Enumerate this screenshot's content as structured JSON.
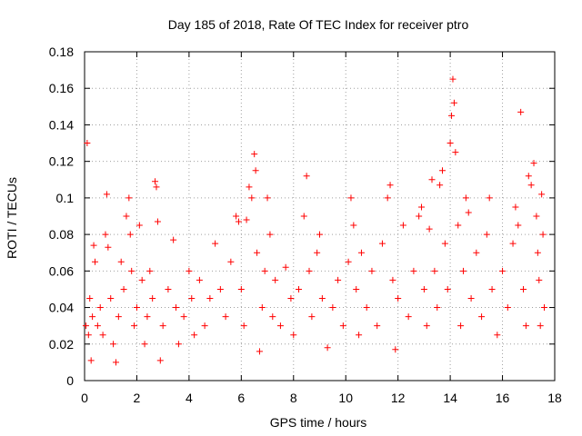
{
  "chart_data": {
    "type": "scatter",
    "title": "Day 185 of 2018, Rate Of TEC Index for receiver ptro",
    "xlabel": "GPS time / hours",
    "ylabel": "ROTI / TECUs",
    "xlim": [
      0,
      18
    ],
    "ylim": [
      0,
      0.18
    ],
    "x_ticks": [
      0,
      2,
      4,
      6,
      8,
      10,
      12,
      14,
      16,
      18
    ],
    "x_tick_labels": [
      "0",
      "2",
      "4",
      "6",
      "8",
      "10",
      "12",
      "14",
      "16",
      "18"
    ],
    "y_ticks": [
      0,
      0.02,
      0.04,
      0.06,
      0.08,
      0.1,
      0.12,
      0.14,
      0.16,
      0.18
    ],
    "y_tick_labels": [
      "0",
      "0.02",
      "0.04",
      "0.06",
      "0.08",
      "0.1",
      "0.12",
      "0.14",
      "0.16",
      "0.18"
    ],
    "grid": true,
    "marker": "+",
    "color": "#ff0000",
    "series": [
      {
        "name": "ROTI",
        "points": [
          [
            0.05,
            0.03
          ],
          [
            0.1,
            0.13
          ],
          [
            0.15,
            0.025
          ],
          [
            0.2,
            0.045
          ],
          [
            0.25,
            0.011
          ],
          [
            0.3,
            0.035
          ],
          [
            0.35,
            0.074
          ],
          [
            0.4,
            0.065
          ],
          [
            0.5,
            0.03
          ],
          [
            0.6,
            0.04
          ],
          [
            0.7,
            0.025
          ],
          [
            0.8,
            0.08
          ],
          [
            0.85,
            0.102
          ],
          [
            0.9,
            0.073
          ],
          [
            1.0,
            0.045
          ],
          [
            1.1,
            0.02
          ],
          [
            1.2,
            0.01
          ],
          [
            1.3,
            0.035
          ],
          [
            1.4,
            0.065
          ],
          [
            1.5,
            0.05
          ],
          [
            1.6,
            0.09
          ],
          [
            1.7,
            0.1
          ],
          [
            1.75,
            0.08
          ],
          [
            1.8,
            0.06
          ],
          [
            1.9,
            0.03
          ],
          [
            2.0,
            0.04
          ],
          [
            2.1,
            0.085
          ],
          [
            2.2,
            0.055
          ],
          [
            2.3,
            0.02
          ],
          [
            2.4,
            0.035
          ],
          [
            2.5,
            0.06
          ],
          [
            2.6,
            0.045
          ],
          [
            2.7,
            0.109
          ],
          [
            2.75,
            0.106
          ],
          [
            2.8,
            0.087
          ],
          [
            2.9,
            0.011
          ],
          [
            3.0,
            0.03
          ],
          [
            3.2,
            0.05
          ],
          [
            3.4,
            0.077
          ],
          [
            3.5,
            0.04
          ],
          [
            3.6,
            0.02
          ],
          [
            3.8,
            0.035
          ],
          [
            4.0,
            0.06
          ],
          [
            4.1,
            0.045
          ],
          [
            4.2,
            0.025
          ],
          [
            4.4,
            0.055
          ],
          [
            4.6,
            0.03
          ],
          [
            4.8,
            0.045
          ],
          [
            5.0,
            0.075
          ],
          [
            5.2,
            0.05
          ],
          [
            5.4,
            0.035
          ],
          [
            5.6,
            0.065
          ],
          [
            5.8,
            0.09
          ],
          [
            5.9,
            0.087
          ],
          [
            6.0,
            0.05
          ],
          [
            6.1,
            0.03
          ],
          [
            6.2,
            0.088
          ],
          [
            6.3,
            0.106
          ],
          [
            6.4,
            0.1
          ],
          [
            6.5,
            0.124
          ],
          [
            6.55,
            0.115
          ],
          [
            6.6,
            0.07
          ],
          [
            6.7,
            0.016
          ],
          [
            6.8,
            0.04
          ],
          [
            6.9,
            0.06
          ],
          [
            7.0,
            0.1
          ],
          [
            7.1,
            0.08
          ],
          [
            7.2,
            0.035
          ],
          [
            7.3,
            0.055
          ],
          [
            7.5,
            0.03
          ],
          [
            7.7,
            0.062
          ],
          [
            7.9,
            0.045
          ],
          [
            8.0,
            0.025
          ],
          [
            8.2,
            0.05
          ],
          [
            8.4,
            0.09
          ],
          [
            8.5,
            0.112
          ],
          [
            8.6,
            0.06
          ],
          [
            8.7,
            0.035
          ],
          [
            8.9,
            0.07
          ],
          [
            9.0,
            0.08
          ],
          [
            9.1,
            0.045
          ],
          [
            9.3,
            0.018
          ],
          [
            9.5,
            0.04
          ],
          [
            9.7,
            0.055
          ],
          [
            9.9,
            0.03
          ],
          [
            10.1,
            0.065
          ],
          [
            10.2,
            0.1
          ],
          [
            10.3,
            0.085
          ],
          [
            10.4,
            0.05
          ],
          [
            10.5,
            0.025
          ],
          [
            10.6,
            0.07
          ],
          [
            10.8,
            0.04
          ],
          [
            11.0,
            0.06
          ],
          [
            11.2,
            0.03
          ],
          [
            11.4,
            0.075
          ],
          [
            11.6,
            0.1
          ],
          [
            11.7,
            0.107
          ],
          [
            11.8,
            0.055
          ],
          [
            11.9,
            0.017
          ],
          [
            12.0,
            0.045
          ],
          [
            12.2,
            0.085
          ],
          [
            12.4,
            0.035
          ],
          [
            12.6,
            0.06
          ],
          [
            12.8,
            0.09
          ],
          [
            12.9,
            0.095
          ],
          [
            13.0,
            0.05
          ],
          [
            13.1,
            0.03
          ],
          [
            13.2,
            0.083
          ],
          [
            13.3,
            0.11
          ],
          [
            13.4,
            0.06
          ],
          [
            13.5,
            0.04
          ],
          [
            13.6,
            0.107
          ],
          [
            13.7,
            0.115
          ],
          [
            13.8,
            0.075
          ],
          [
            13.9,
            0.05
          ],
          [
            14.0,
            0.13
          ],
          [
            14.05,
            0.145
          ],
          [
            14.1,
            0.165
          ],
          [
            14.15,
            0.152
          ],
          [
            14.2,
            0.125
          ],
          [
            14.3,
            0.085
          ],
          [
            14.4,
            0.03
          ],
          [
            14.5,
            0.06
          ],
          [
            14.6,
            0.1
          ],
          [
            14.7,
            0.092
          ],
          [
            14.8,
            0.045
          ],
          [
            15.0,
            0.07
          ],
          [
            15.2,
            0.035
          ],
          [
            15.4,
            0.08
          ],
          [
            15.5,
            0.1
          ],
          [
            15.6,
            0.05
          ],
          [
            15.8,
            0.025
          ],
          [
            16.0,
            0.06
          ],
          [
            16.2,
            0.04
          ],
          [
            16.4,
            0.075
          ],
          [
            16.5,
            0.095
          ],
          [
            16.6,
            0.085
          ],
          [
            16.7,
            0.147
          ],
          [
            16.8,
            0.05
          ],
          [
            16.9,
            0.03
          ],
          [
            17.0,
            0.112
          ],
          [
            17.1,
            0.107
          ],
          [
            17.2,
            0.119
          ],
          [
            17.3,
            0.09
          ],
          [
            17.35,
            0.07
          ],
          [
            17.4,
            0.055
          ],
          [
            17.45,
            0.03
          ],
          [
            17.5,
            0.102
          ],
          [
            17.55,
            0.08
          ],
          [
            17.6,
            0.04
          ]
        ]
      }
    ]
  }
}
